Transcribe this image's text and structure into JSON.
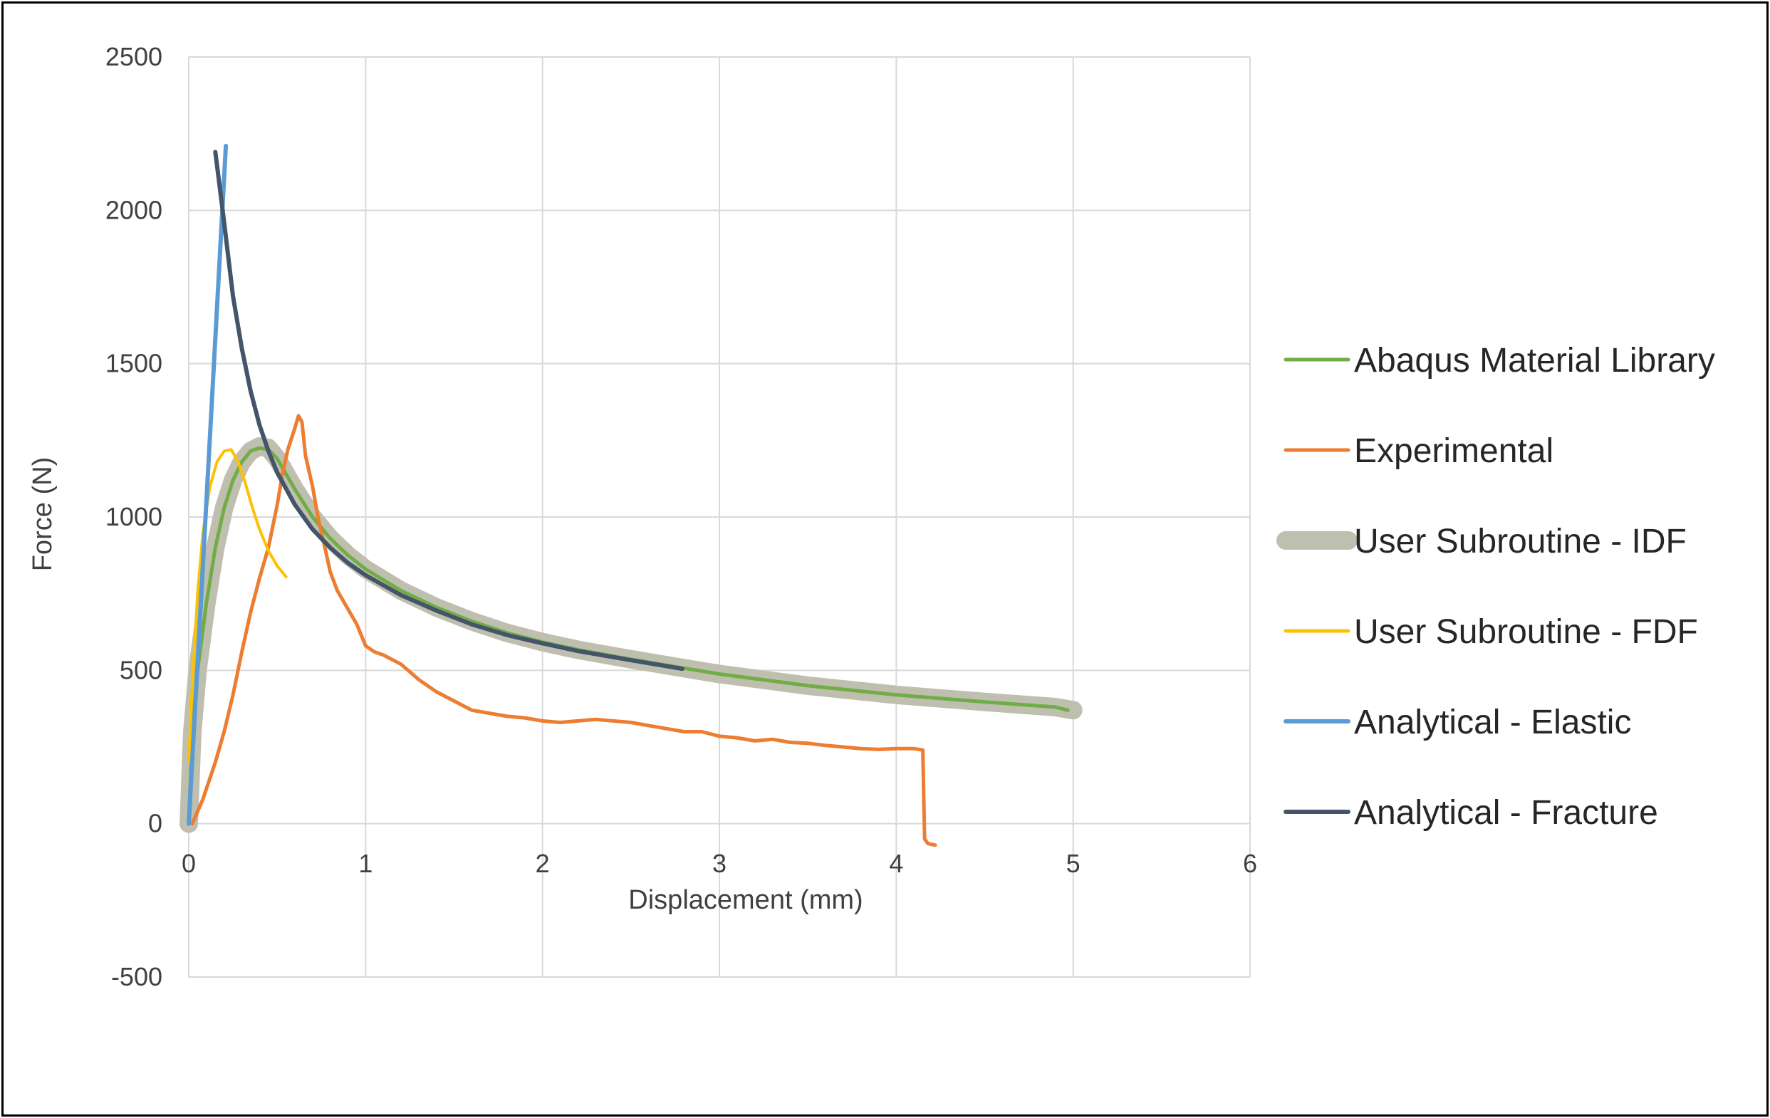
{
  "chart_data": {
    "type": "line",
    "title": "",
    "xlabel": "Displacement (mm)",
    "ylabel": "Force (N)",
    "xlim": [
      0,
      6
    ],
    "ylim": [
      -500,
      2500
    ],
    "x_ticks": [
      "0",
      "1",
      "2",
      "3",
      "4",
      "5",
      "6"
    ],
    "y_ticks": [
      "-500",
      "0",
      "500",
      "1000",
      "1500",
      "2000",
      "2500"
    ],
    "grid": true,
    "legend_position": "right",
    "series": [
      {
        "name": "User Subroutine - IDF",
        "color": "#bfbfb0",
        "width": 26,
        "points": [
          [
            0.0,
            0
          ],
          [
            0.02,
            300
          ],
          [
            0.05,
            500
          ],
          [
            0.1,
            720
          ],
          [
            0.15,
            900
          ],
          [
            0.2,
            1030
          ],
          [
            0.25,
            1120
          ],
          [
            0.3,
            1180
          ],
          [
            0.35,
            1215
          ],
          [
            0.4,
            1230
          ],
          [
            0.45,
            1225
          ],
          [
            0.5,
            1190
          ],
          [
            0.55,
            1140
          ],
          [
            0.6,
            1090
          ],
          [
            0.7,
            1000
          ],
          [
            0.8,
            930
          ],
          [
            0.9,
            875
          ],
          [
            1.0,
            830
          ],
          [
            1.2,
            760
          ],
          [
            1.4,
            705
          ],
          [
            1.6,
            660
          ],
          [
            1.8,
            622
          ],
          [
            2.0,
            592
          ],
          [
            2.2,
            567
          ],
          [
            2.5,
            536
          ],
          [
            2.8,
            507
          ],
          [
            3.0,
            488
          ],
          [
            3.5,
            450
          ],
          [
            4.0,
            420
          ],
          [
            4.5,
            397
          ],
          [
            4.9,
            380
          ],
          [
            5.0,
            370
          ]
        ]
      },
      {
        "name": "Abaqus Material Library",
        "color": "#70ad47",
        "width": 5,
        "points": [
          [
            0.0,
            0
          ],
          [
            0.02,
            300
          ],
          [
            0.05,
            500
          ],
          [
            0.1,
            720
          ],
          [
            0.15,
            900
          ],
          [
            0.2,
            1030
          ],
          [
            0.25,
            1120
          ],
          [
            0.3,
            1180
          ],
          [
            0.35,
            1215
          ],
          [
            0.4,
            1225
          ],
          [
            0.45,
            1220
          ],
          [
            0.5,
            1190
          ],
          [
            0.55,
            1140
          ],
          [
            0.6,
            1090
          ],
          [
            0.7,
            1000
          ],
          [
            0.8,
            930
          ],
          [
            0.9,
            875
          ],
          [
            1.0,
            830
          ],
          [
            1.2,
            760
          ],
          [
            1.4,
            705
          ],
          [
            1.6,
            660
          ],
          [
            1.8,
            622
          ],
          [
            2.0,
            592
          ],
          [
            2.2,
            567
          ],
          [
            2.5,
            536
          ],
          [
            2.8,
            507
          ],
          [
            3.0,
            488
          ],
          [
            3.5,
            450
          ],
          [
            4.0,
            420
          ],
          [
            4.5,
            397
          ],
          [
            4.9,
            380
          ],
          [
            4.97,
            370
          ]
        ]
      },
      {
        "name": "Experimental",
        "color": "#ed7d31",
        "width": 5,
        "points": [
          [
            0.02,
            0
          ],
          [
            0.08,
            80
          ],
          [
            0.15,
            200
          ],
          [
            0.2,
            300
          ],
          [
            0.25,
            420
          ],
          [
            0.3,
            560
          ],
          [
            0.35,
            690
          ],
          [
            0.4,
            800
          ],
          [
            0.45,
            900
          ],
          [
            0.5,
            1040
          ],
          [
            0.53,
            1140
          ],
          [
            0.56,
            1220
          ],
          [
            0.6,
            1290
          ],
          [
            0.62,
            1330
          ],
          [
            0.64,
            1310
          ],
          [
            0.66,
            1200
          ],
          [
            0.7,
            1100
          ],
          [
            0.73,
            1000
          ],
          [
            0.77,
            900
          ],
          [
            0.8,
            820
          ],
          [
            0.84,
            760
          ],
          [
            0.9,
            700
          ],
          [
            0.95,
            650
          ],
          [
            1.0,
            580
          ],
          [
            1.05,
            560
          ],
          [
            1.1,
            550
          ],
          [
            1.2,
            520
          ],
          [
            1.3,
            470
          ],
          [
            1.4,
            430
          ],
          [
            1.5,
            400
          ],
          [
            1.6,
            370
          ],
          [
            1.7,
            360
          ],
          [
            1.8,
            350
          ],
          [
            1.9,
            345
          ],
          [
            2.0,
            335
          ],
          [
            2.1,
            330
          ],
          [
            2.2,
            335
          ],
          [
            2.3,
            340
          ],
          [
            2.4,
            335
          ],
          [
            2.5,
            330
          ],
          [
            2.6,
            320
          ],
          [
            2.7,
            310
          ],
          [
            2.8,
            300
          ],
          [
            2.9,
            300
          ],
          [
            3.0,
            285
          ],
          [
            3.1,
            280
          ],
          [
            3.2,
            270
          ],
          [
            3.3,
            275
          ],
          [
            3.4,
            265
          ],
          [
            3.5,
            262
          ],
          [
            3.6,
            255
          ],
          [
            3.7,
            250
          ],
          [
            3.8,
            245
          ],
          [
            3.9,
            242
          ],
          [
            4.0,
            245
          ],
          [
            4.1,
            245
          ],
          [
            4.15,
            240
          ],
          [
            4.16,
            -50
          ],
          [
            4.18,
            -65
          ],
          [
            4.22,
            -70
          ]
        ]
      },
      {
        "name": "User Subroutine - FDF",
        "color": "#ffc000",
        "width": 4,
        "points": [
          [
            0.0,
            200
          ],
          [
            0.02,
            450
          ],
          [
            0.05,
            750
          ],
          [
            0.08,
            950
          ],
          [
            0.12,
            1100
          ],
          [
            0.16,
            1180
          ],
          [
            0.2,
            1215
          ],
          [
            0.24,
            1220
          ],
          [
            0.28,
            1180
          ],
          [
            0.32,
            1110
          ],
          [
            0.36,
            1030
          ],
          [
            0.4,
            960
          ],
          [
            0.45,
            890
          ],
          [
            0.5,
            840
          ],
          [
            0.55,
            805
          ]
        ]
      },
      {
        "name": "Analytical - Elastic",
        "color": "#5b9bd5",
        "width": 6,
        "points": [
          [
            0.0,
            0
          ],
          [
            0.21,
            2210
          ]
        ]
      },
      {
        "name": "Analytical - Fracture",
        "color": "#44546a",
        "width": 6,
        "points": [
          [
            0.15,
            2190
          ],
          [
            0.17,
            2100
          ],
          [
            0.2,
            1960
          ],
          [
            0.25,
            1720
          ],
          [
            0.3,
            1550
          ],
          [
            0.35,
            1410
          ],
          [
            0.4,
            1300
          ],
          [
            0.45,
            1215
          ],
          [
            0.5,
            1145
          ],
          [
            0.6,
            1040
          ],
          [
            0.7,
            960
          ],
          [
            0.8,
            900
          ],
          [
            0.9,
            850
          ],
          [
            1.0,
            810
          ],
          [
            1.2,
            745
          ],
          [
            1.4,
            695
          ],
          [
            1.6,
            650
          ],
          [
            1.8,
            615
          ],
          [
            2.0,
            588
          ],
          [
            2.2,
            563
          ],
          [
            2.5,
            533
          ],
          [
            2.79,
            505
          ]
        ]
      }
    ],
    "legend_order": [
      "Abaqus Material Library",
      "Experimental",
      "User Subroutine - IDF",
      "User Subroutine - FDF",
      "Analytical - Elastic",
      "Analytical - Fracture"
    ]
  }
}
